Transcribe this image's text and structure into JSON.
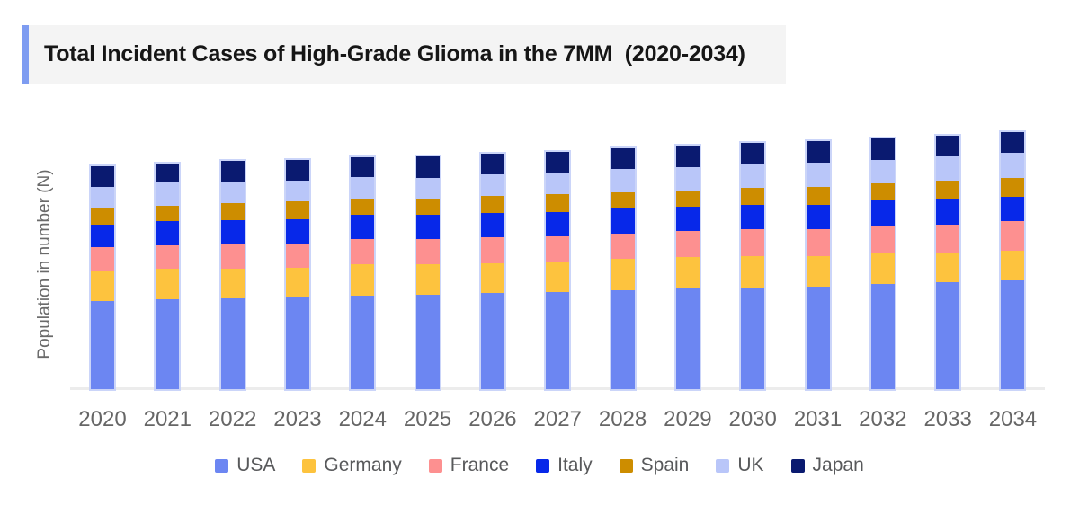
{
  "title": {
    "text": "Total Incident Cases of High-Grade Glioma in the 7MM  (2020-2034)",
    "accent_color": "#7e9cf1",
    "background": "#f4f4f4"
  },
  "chart_data": {
    "type": "bar",
    "stacked": true,
    "title": "Total Incident Cases of High-Grade Glioma in the 7MM (2020-2034)",
    "xlabel": "",
    "ylabel": "Population in number (N)",
    "categories": [
      "2020",
      "2021",
      "2022",
      "2023",
      "2024",
      "2025",
      "2026",
      "2027",
      "2028",
      "2029",
      "2030",
      "2031",
      "2032",
      "2033",
      "2034"
    ],
    "series": [
      {
        "name": "USA",
        "color": "#6c86f2",
        "values": [
          98,
          100,
          101,
          102,
          104,
          105,
          107,
          108,
          110,
          112,
          113,
          114,
          117,
          119,
          121
        ]
      },
      {
        "name": "Germany",
        "color": "#fdc33e",
        "values": [
          33,
          34,
          33,
          33,
          35,
          34,
          33,
          33,
          35,
          35,
          35,
          34,
          34,
          33,
          33
        ]
      },
      {
        "name": "France",
        "color": "#fd9090",
        "values": [
          27,
          26,
          27,
          27,
          28,
          28,
          29,
          29,
          28,
          29,
          30,
          30,
          31,
          31,
          33
        ]
      },
      {
        "name": "Italy",
        "color": "#0728e9",
        "values": [
          25,
          27,
          27,
          27,
          27,
          27,
          27,
          27,
          28,
          27,
          27,
          27,
          28,
          28,
          27
        ]
      },
      {
        "name": "Spain",
        "color": "#cd8d00",
        "values": [
          18,
          17,
          19,
          20,
          18,
          18,
          19,
          20,
          18,
          18,
          19,
          20,
          19,
          21,
          21
        ]
      },
      {
        "name": "UK",
        "color": "#b9c6f9",
        "values": [
          24,
          26,
          24,
          23,
          24,
          23,
          24,
          24,
          26,
          26,
          27,
          27,
          26,
          27,
          28
        ]
      },
      {
        "name": "Japan",
        "color": "#0a1a70",
        "values": [
          23,
          21,
          23,
          23,
          22,
          24,
          23,
          23,
          23,
          24,
          23,
          24,
          24,
          23,
          23
        ]
      }
    ],
    "value_scale_note": "No numeric y-axis shown; values are relative heights read from the chart (pixels).",
    "ylim": [
      0,
      300
    ],
    "grid": false,
    "legend_position": "bottom",
    "axis_line_color": "#ececec",
    "tick_label_color": "#666666",
    "legend_text_color": "#58595b"
  }
}
